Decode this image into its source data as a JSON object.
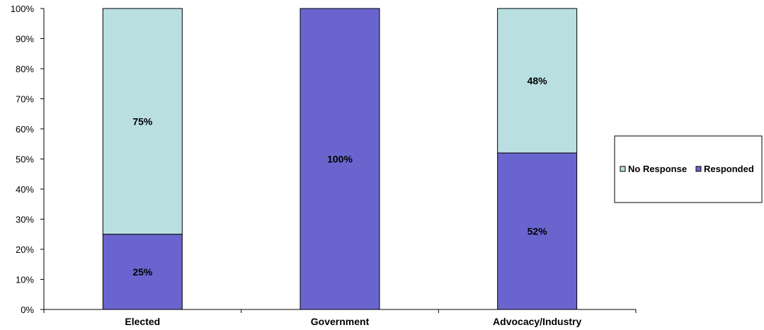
{
  "chart_data": {
    "type": "bar",
    "stacked": true,
    "normalized": true,
    "categories": [
      "Elected",
      "Government",
      "Advocacy/Industry"
    ],
    "series": [
      {
        "name": "Responded",
        "values": [
          25,
          100,
          52
        ],
        "labels": [
          "25%",
          "100%",
          "52%"
        ],
        "color": "#6A65CE"
      },
      {
        "name": "No Response",
        "values": [
          75,
          0,
          48
        ],
        "labels": [
          "75%",
          "",
          "48%"
        ],
        "color": "#B9DFE1"
      }
    ],
    "ylim": [
      0,
      100
    ],
    "yticks": [
      "0%",
      "10%",
      "20%",
      "30%",
      "40%",
      "50%",
      "60%",
      "70%",
      "80%",
      "90%",
      "100%"
    ],
    "grid": false,
    "legend": {
      "position": "right",
      "entries": [
        "No Response",
        "Responded"
      ]
    }
  }
}
